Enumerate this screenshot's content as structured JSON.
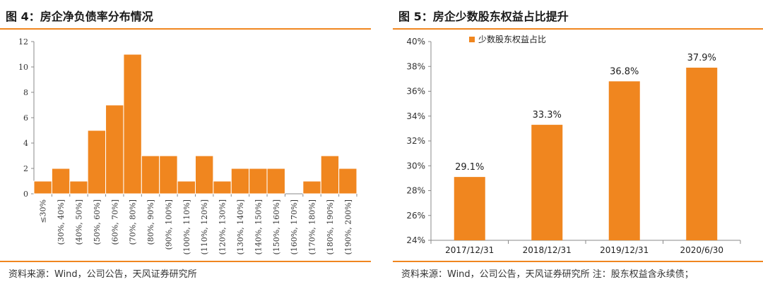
{
  "left": {
    "title": "图 4：房企净负债率分布情况",
    "source": "资料来源：Wind，公司公告，天风证券研究所"
  },
  "right": {
    "title": "图 5：房企少数股东权益占比提升",
    "source": "资料来源：Wind，公司公告，天风证券研究所  注：股东权益含永续债；"
  },
  "colors": {
    "bar": "#f0861f",
    "rule": "#f0861f",
    "axis": "#888888"
  },
  "chart_data": [
    {
      "type": "bar",
      "title": "",
      "xlabel": "",
      "ylabel": "",
      "ylim": [
        0,
        12
      ],
      "yticks": [
        "0",
        "2",
        "4",
        "6",
        "8",
        "10",
        "12"
      ],
      "categories": [
        "≤30%",
        "(30%, 40%]",
        "(40%, 50%]",
        "(50%, 60%]",
        "(60%, 70%]",
        "(70%, 80%]",
        "(80%, 90%]",
        "(90%, 100%]",
        "(100%, 110%]",
        "(110%, 120%]",
        "(120%, 130%]",
        "(130%, 140%]",
        "(140%, 150%]",
        "(150%, 160%]",
        "(160%, 170%]",
        "(170%, 180%]",
        "(180%, 190%]",
        "(190%, 200%]"
      ],
      "values": [
        1,
        2,
        1,
        5,
        7,
        11,
        3,
        3,
        1,
        3,
        1,
        2,
        2,
        2,
        0,
        1,
        3,
        2
      ],
      "grid": false
    },
    {
      "type": "bar",
      "title": "",
      "xlabel": "",
      "ylabel": "",
      "ylim": [
        24,
        40
      ],
      "yticks": [
        "24%",
        "26%",
        "28%",
        "30%",
        "32%",
        "34%",
        "36%",
        "38%",
        "40%"
      ],
      "categories": [
        "2017/12/31",
        "2018/12/31",
        "2019/12/31",
        "2020/6/30"
      ],
      "series": [
        {
          "name": "少数股东权益占比",
          "values": [
            29.1,
            33.3,
            36.8,
            37.9
          ]
        }
      ],
      "data_labels": [
        "29.1%",
        "33.3%",
        "36.8%",
        "37.9%"
      ],
      "legend": "top-left",
      "grid": false
    }
  ]
}
